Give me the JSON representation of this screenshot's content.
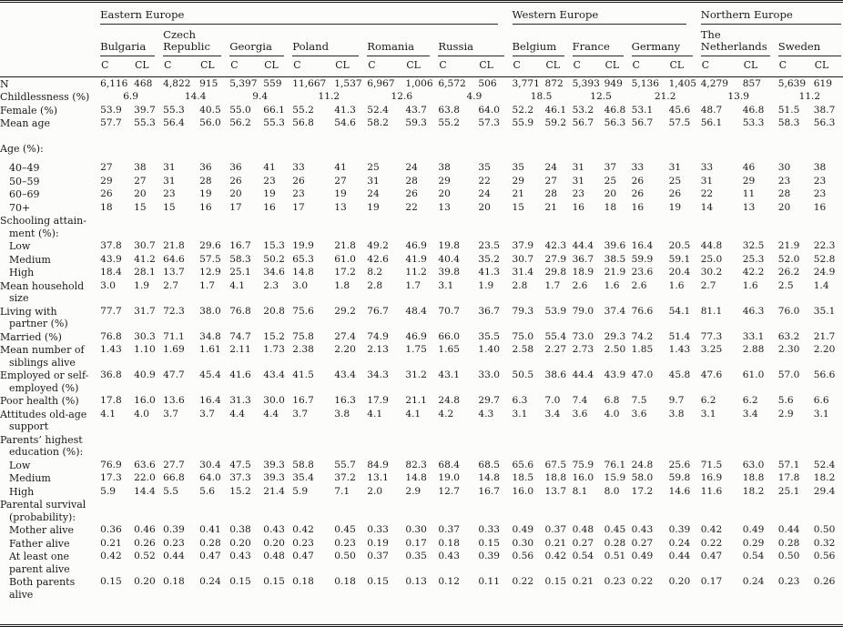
{
  "table": {
    "sub_headers": [
      "C",
      "CL"
    ],
    "regions": [
      {
        "label": "Eastern Europe",
        "countries": [
          "Bulgaria",
          "Czech Republic",
          "Georgia",
          "Poland",
          "Romania",
          "Russia"
        ]
      },
      {
        "label": "Western Europe",
        "countries": [
          "Belgium",
          "France",
          "Germany"
        ]
      },
      {
        "label": "Northern Europe",
        "countries": [
          "The Netherlands",
          "Sweden"
        ]
      }
    ],
    "rows": [
      {
        "label": "N",
        "type": "pair",
        "values": [
          "6,116",
          "468",
          "4,822",
          "915",
          "5,397",
          "559",
          "11,667",
          "1,537",
          "6,967",
          "1,006",
          "6,572",
          "506",
          "3,771",
          "872",
          "5,393",
          "949",
          "5,136",
          "1,405",
          "4,279",
          "857",
          "5,639",
          "619"
        ]
      },
      {
        "label": "Childlessness (%)",
        "type": "span",
        "values": [
          "6.9",
          "14.4",
          "9.4",
          "11.2",
          "12.6",
          "4.9",
          "18.5",
          "12.5",
          "21.2",
          "13.9",
          "11.2"
        ]
      },
      {
        "label": "Female (%)",
        "type": "pair",
        "values": [
          "53.9",
          "39.7",
          "55.3",
          "40.5",
          "55.0",
          "66.1",
          "55.2",
          "41.3",
          "52.4",
          "43.7",
          "63.8",
          "64.0",
          "52.2",
          "46.1",
          "53.2",
          "46.8",
          "53.1",
          "45.6",
          "48.7",
          "46.8",
          "51.5",
          "38.7"
        ]
      },
      {
        "label": "Mean age",
        "type": "pair",
        "values": [
          "57.7",
          "55.3",
          "56.4",
          "56.0",
          "56.2",
          "55.3",
          "56.8",
          "54.6",
          "58.2",
          "59.3",
          "55.2",
          "57.3",
          "55.9",
          "59.2",
          "56.7",
          "56.3",
          "56.7",
          "57.5",
          "56.1",
          "53.3",
          "58.3",
          "56.3"
        ]
      },
      {
        "label": "Age (%):",
        "type": "section",
        "gap": "lg"
      },
      {
        "label": "40–49",
        "type": "pair",
        "indent": 1,
        "gap": "sm",
        "values": [
          "27",
          "38",
          "31",
          "36",
          "36",
          "41",
          "33",
          "41",
          "25",
          "24",
          "38",
          "35",
          "35",
          "24",
          "31",
          "37",
          "33",
          "31",
          "33",
          "46",
          "30",
          "38"
        ]
      },
      {
        "label": "50–59",
        "type": "pair",
        "indent": 1,
        "values": [
          "29",
          "27",
          "31",
          "28",
          "26",
          "23",
          "26",
          "27",
          "31",
          "28",
          "29",
          "22",
          "29",
          "27",
          "31",
          "25",
          "26",
          "25",
          "31",
          "29",
          "23",
          "23"
        ]
      },
      {
        "label": "60–69",
        "type": "pair",
        "indent": 1,
        "values": [
          "26",
          "20",
          "23",
          "19",
          "20",
          "19",
          "23",
          "19",
          "24",
          "26",
          "20",
          "24",
          "21",
          "28",
          "23",
          "20",
          "26",
          "26",
          "22",
          "11",
          "28",
          "23"
        ]
      },
      {
        "label": "70+",
        "type": "pair",
        "indent": 1,
        "values": [
          "18",
          "15",
          "15",
          "16",
          "17",
          "16",
          "17",
          "13",
          "19",
          "22",
          "13",
          "20",
          "15",
          "21",
          "16",
          "18",
          "16",
          "19",
          "14",
          "13",
          "20",
          "16"
        ]
      },
      {
        "label": "Schooling attain-\nment (%):",
        "type": "section"
      },
      {
        "label": "Low",
        "type": "pair",
        "indent": 1,
        "values": [
          "37.8",
          "30.7",
          "21.8",
          "29.6",
          "16.7",
          "15.3",
          "19.9",
          "21.8",
          "49.2",
          "46.9",
          "19.8",
          "23.5",
          "37.9",
          "42.3",
          "44.4",
          "39.6",
          "16.4",
          "20.5",
          "44.8",
          "32.5",
          "21.9",
          "22.3"
        ]
      },
      {
        "label": "Medium",
        "type": "pair",
        "indent": 1,
        "values": [
          "43.9",
          "41.2",
          "64.6",
          "57.5",
          "58.3",
          "50.2",
          "65.3",
          "61.0",
          "42.6",
          "41.9",
          "40.4",
          "35.2",
          "30.7",
          "27.9",
          "36.7",
          "38.5",
          "59.9",
          "59.1",
          "25.0",
          "25.3",
          "52.0",
          "52.8"
        ]
      },
      {
        "label": "High",
        "type": "pair",
        "indent": 1,
        "values": [
          "18.4",
          "28.1",
          "13.7",
          "12.9",
          "25.1",
          "34.6",
          "14.8",
          "17.2",
          "8.2",
          "11.2",
          "39.8",
          "41.3",
          "31.4",
          "29.8",
          "18.9",
          "21.9",
          "23.6",
          "20.4",
          "30.2",
          "42.2",
          "26.2",
          "24.9"
        ]
      },
      {
        "label": "Mean household\nsize",
        "type": "pair",
        "values": [
          "3.0",
          "1.9",
          "2.7",
          "1.7",
          "4.1",
          "2.3",
          "3.0",
          "1.8",
          "2.8",
          "1.7",
          "3.1",
          "1.9",
          "2.8",
          "1.7",
          "2.6",
          "1.6",
          "2.6",
          "1.6",
          "2.7",
          "1.6",
          "2.5",
          "1.4"
        ]
      },
      {
        "label": "Living with\npartner (%)",
        "type": "pair",
        "values": [
          "77.7",
          "31.7",
          "72.3",
          "38.0",
          "76.8",
          "20.8",
          "75.6",
          "29.2",
          "76.7",
          "48.4",
          "70.7",
          "36.7",
          "79.3",
          "53.9",
          "79.0",
          "37.4",
          "76.6",
          "54.1",
          "81.1",
          "46.3",
          "76.0",
          "35.1"
        ]
      },
      {
        "label": "Married (%)",
        "type": "pair",
        "values": [
          "76.8",
          "30.3",
          "71.1",
          "34.8",
          "74.7",
          "15.2",
          "75.8",
          "27.4",
          "74.9",
          "46.9",
          "66.0",
          "35.5",
          "75.0",
          "55.4",
          "73.0",
          "29.3",
          "74.2",
          "51.4",
          "77.3",
          "33.1",
          "63.2",
          "21.7"
        ]
      },
      {
        "label": "Mean number of\nsiblings alive",
        "type": "pair",
        "values": [
          "1.43",
          "1.10",
          "1.69",
          "1.61",
          "2.11",
          "1.73",
          "2.38",
          "2.20",
          "2.13",
          "1.75",
          "1.65",
          "1.40",
          "2.58",
          "2.27",
          "2.73",
          "2.50",
          "1.85",
          "1.43",
          "3.25",
          "2.88",
          "2.30",
          "2.20"
        ]
      },
      {
        "label": "Employed or self-\nemployed (%)",
        "type": "pair",
        "values": [
          "36.8",
          "40.9",
          "47.7",
          "45.4",
          "41.6",
          "43.4",
          "41.5",
          "43.4",
          "34.3",
          "31.2",
          "43.1",
          "33.0",
          "50.5",
          "38.6",
          "44.4",
          "43.9",
          "47.0",
          "45.8",
          "47.6",
          "61.0",
          "57.0",
          "56.6"
        ]
      },
      {
        "label": "Poor health (%)",
        "type": "pair",
        "values": [
          "17.8",
          "16.0",
          "13.6",
          "16.4",
          "31.3",
          "30.0",
          "16.7",
          "16.3",
          "17.9",
          "21.1",
          "24.8",
          "29.7",
          "6.3",
          "7.0",
          "7.4",
          "6.8",
          "7.5",
          "9.7",
          "6.2",
          "6.2",
          "5.6",
          "6.6"
        ]
      },
      {
        "label": "Attitudes old-age\nsupport",
        "type": "pair",
        "values": [
          "4.1",
          "4.0",
          "3.7",
          "3.7",
          "4.4",
          "4.4",
          "3.7",
          "3.8",
          "4.1",
          "4.1",
          "4.2",
          "4.3",
          "3.1",
          "3.4",
          "3.6",
          "4.0",
          "3.6",
          "3.8",
          "3.1",
          "3.4",
          "2.9",
          "3.1"
        ]
      },
      {
        "label": "Parents’ highest\neducation (%):",
        "type": "section"
      },
      {
        "label": "Low",
        "type": "pair",
        "indent": 1,
        "values": [
          "76.9",
          "63.6",
          "27.7",
          "30.4",
          "47.5",
          "39.3",
          "58.8",
          "55.7",
          "84.9",
          "82.3",
          "68.4",
          "68.5",
          "65.6",
          "67.5",
          "75.9",
          "76.1",
          "24.8",
          "25.6",
          "71.5",
          "63.0",
          "57.1",
          "52.4"
        ]
      },
      {
        "label": "Medium",
        "type": "pair",
        "indent": 1,
        "values": [
          "17.3",
          "22.0",
          "66.8",
          "64.0",
          "37.3",
          "39.3",
          "35.4",
          "37.2",
          "13.1",
          "14.8",
          "19.0",
          "14.8",
          "18.5",
          "18.8",
          "16.0",
          "15.9",
          "58.0",
          "59.8",
          "16.9",
          "18.8",
          "17.8",
          "18.2"
        ]
      },
      {
        "label": "High",
        "type": "pair",
        "indent": 1,
        "values": [
          "5.9",
          "14.4",
          "5.5",
          "5.6",
          "15.2",
          "21.4",
          "5.9",
          "7.1",
          "2.0",
          "2.9",
          "12.7",
          "16.7",
          "16.0",
          "13.7",
          "8.1",
          "8.0",
          "17.2",
          "14.6",
          "11.6",
          "18.2",
          "25.1",
          "29.4"
        ]
      },
      {
        "label": "Parental survival\n(probability):",
        "type": "section"
      },
      {
        "label": "Mother alive",
        "type": "pair",
        "indent": 1,
        "values": [
          "0.36",
          "0.46",
          "0.39",
          "0.41",
          "0.38",
          "0.43",
          "0.42",
          "0.45",
          "0.33",
          "0.30",
          "0.37",
          "0.33",
          "0.49",
          "0.37",
          "0.48",
          "0.45",
          "0.43",
          "0.39",
          "0.42",
          "0.49",
          "0.44",
          "0.50"
        ]
      },
      {
        "label": "Father alive",
        "type": "pair",
        "indent": 1,
        "values": [
          "0.21",
          "0.26",
          "0.23",
          "0.28",
          "0.20",
          "0.20",
          "0.23",
          "0.23",
          "0.19",
          "0.17",
          "0.18",
          "0.15",
          "0.30",
          "0.21",
          "0.27",
          "0.28",
          "0.27",
          "0.24",
          "0.22",
          "0.29",
          "0.28",
          "0.32"
        ]
      },
      {
        "label": "At least one\nparent alive",
        "type": "pair",
        "indent": 1,
        "values": [
          "0.42",
          "0.52",
          "0.44",
          "0.47",
          "0.43",
          "0.48",
          "0.47",
          "0.50",
          "0.37",
          "0.35",
          "0.43",
          "0.39",
          "0.56",
          "0.42",
          "0.54",
          "0.51",
          "0.49",
          "0.44",
          "0.47",
          "0.54",
          "0.50",
          "0.56"
        ]
      },
      {
        "label": "Both parents\nalive",
        "type": "pair",
        "indent": 1,
        "values": [
          "0.15",
          "0.20",
          "0.18",
          "0.24",
          "0.15",
          "0.15",
          "0.18",
          "0.18",
          "0.15",
          "0.13",
          "0.12",
          "0.11",
          "0.22",
          "0.15",
          "0.21",
          "0.23",
          "0.22",
          "0.20",
          "0.17",
          "0.24",
          "0.23",
          "0.26"
        ]
      }
    ]
  }
}
